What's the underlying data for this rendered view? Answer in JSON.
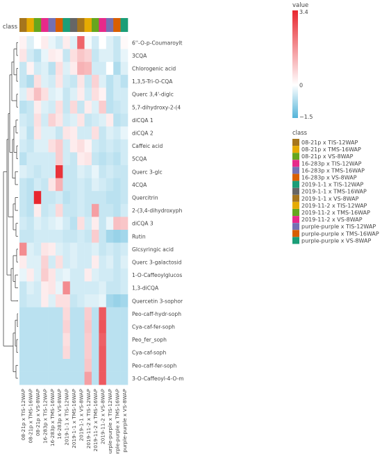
{
  "chart_data": {
    "type": "heatmap",
    "class_axis_label": "class",
    "rows": [
      "6''-O-p-Coumaroylt",
      "3CQA",
      "Chlorogenic acid",
      "1,3,5-Tri-O-CQA",
      "Querc 3,4'-diglc",
      "5,7-dihydroxy-2-(4",
      "diCQA 1",
      "diCQA 2",
      "Caffeic acid",
      "5CQA",
      "Querc 3-glc",
      "4CQA",
      "Quercitrin",
      "2-(3,4-dihydroxyph",
      "diCQA 3",
      "Rutin",
      "Glcsyringic acid",
      "Querc 3-galactosid",
      "1-O-Caffeoylglucos",
      "1,3-diCQA",
      "Quercetin 3-sophor",
      "Peo-caff-hydr-soph",
      "Cya-caf-fer-soph",
      "Peo_fer_soph",
      "Cya-caf-soph",
      "Peo-caff-fer-soph",
      "3-O-Caffeoyl-4-O-m"
    ],
    "columns": [
      "08-21p x TIS-12WAP",
      "08-21p x TMS-16WAP",
      "08-21p x VS-8WAP",
      "16-283p x TIS-12WAP",
      "16-283p x TMS-16WAP",
      "16-283p x VS-8WAP",
      "2019-1-1 x TIS-12WAP",
      "2019-1-1 x TMS-16WAP",
      "2019-1-1 x VS-8WAP",
      "2019-11-2 x TIS-12WAP",
      "2019-11-2 x TMS-16WAP",
      "2019-11-2 x VS-8WAP",
      "purple-purple x TIS-12WAP",
      "purple-purple x TMS-16WAP",
      "purple-purple x VS-8WAP"
    ],
    "column_class_colors": [
      "#a6761d",
      "#e6ab02",
      "#66a61e",
      "#e7298a",
      "#7570b3",
      "#d95f02",
      "#1b9e77",
      "#666666",
      "#a6761d",
      "#e6ab02",
      "#66a61e",
      "#e7298a",
      "#7570b3",
      "#d95f02",
      "#1b9e77"
    ],
    "values": [
      [
        0.2,
        -0.3,
        0.0,
        0.3,
        -0.2,
        -0.4,
        0.3,
        -0.3,
        2.4,
        -0.1,
        -0.4,
        0.0,
        -0.3,
        -0.5,
        0.1
      ],
      [
        0.4,
        -0.4,
        -0.6,
        -0.2,
        0.3,
        0.2,
        -0.5,
        0.5,
        0.9,
        0.7,
        -0.5,
        -0.3,
        -0.3,
        -0.5,
        -0.2
      ],
      [
        -0.5,
        0.2,
        -0.4,
        -0.3,
        -0.6,
        0.5,
        -0.3,
        0.3,
        1.2,
        1.1,
        -0.4,
        -0.4,
        0.0,
        -0.7,
        -0.3
      ],
      [
        -0.5,
        -0.7,
        0.5,
        -0.3,
        -0.4,
        0.4,
        -0.4,
        -0.5,
        0.4,
        -0.5,
        0.7,
        -0.3,
        -0.6,
        -0.4,
        -0.6
      ],
      [
        -0.3,
        0.4,
        1.0,
        0.5,
        -0.3,
        -0.2,
        -0.5,
        -0.3,
        0.3,
        -0.4,
        0.5,
        0.2,
        -0.6,
        -0.4,
        -0.4
      ],
      [
        -0.6,
        -0.5,
        0.3,
        -0.3,
        -0.4,
        0.5,
        -0.5,
        0.6,
        -0.5,
        0.3,
        -0.3,
        0.8,
        -0.6,
        -0.5,
        -0.4
      ],
      [
        -0.4,
        -0.5,
        0.5,
        -0.4,
        0.7,
        0.4,
        -0.4,
        -0.3,
        0.4,
        -0.5,
        -0.4,
        -0.3,
        0.3,
        -0.6,
        -0.5
      ],
      [
        -0.3,
        -0.6,
        0.4,
        -0.3,
        -0.3,
        -0.5,
        0.4,
        0.3,
        -0.4,
        -0.4,
        0.5,
        -0.5,
        -0.3,
        -0.4,
        -0.2
      ],
      [
        -0.4,
        -0.5,
        -0.3,
        -0.3,
        0.5,
        0.8,
        -0.4,
        0.3,
        0.5,
        0.2,
        -0.4,
        -0.5,
        -0.4,
        -0.5,
        -0.4
      ],
      [
        -0.6,
        -0.4,
        -0.4,
        -0.4,
        -0.4,
        0.8,
        -0.4,
        -0.5,
        0.3,
        0.4,
        -0.5,
        -0.6,
        -0.5,
        -0.6,
        -0.4
      ],
      [
        -0.3,
        -0.4,
        -0.5,
        -0.4,
        -0.4,
        3.2,
        -0.5,
        -0.5,
        -0.3,
        -0.4,
        -0.2,
        -0.5,
        -0.4,
        -0.5,
        -0.5
      ],
      [
        -0.5,
        -0.6,
        -0.4,
        -0.5,
        0.4,
        1.2,
        -0.5,
        -0.5,
        -0.4,
        -0.5,
        -0.3,
        -0.4,
        -0.5,
        -0.6,
        -0.5
      ],
      [
        -0.5,
        -0.6,
        3.4,
        -0.5,
        -0.5,
        -0.4,
        -0.6,
        -0.5,
        -0.4,
        -0.5,
        -0.5,
        -0.5,
        -0.6,
        -0.6,
        -0.5
      ],
      [
        -0.5,
        -0.6,
        0.3,
        -0.5,
        -0.4,
        0.6,
        -0.5,
        -0.5,
        -0.4,
        -0.5,
        1.5,
        -0.5,
        -0.5,
        -0.6,
        -0.4
      ],
      [
        -0.4,
        -0.5,
        -0.3,
        -0.4,
        -0.3,
        -0.2,
        -0.4,
        -0.6,
        0.5,
        -0.4,
        0.3,
        -0.5,
        -0.2,
        1.0,
        0.9
      ],
      [
        -0.5,
        -0.5,
        -0.4,
        -0.4,
        -0.4,
        -0.4,
        -0.5,
        -0.5,
        -0.4,
        -0.5,
        0.8,
        -0.5,
        -0.8,
        -0.9,
        -0.8
      ],
      [
        1.8,
        -0.3,
        -0.4,
        0.4,
        0.3,
        -0.3,
        -0.4,
        -0.3,
        -0.4,
        -0.4,
        -0.3,
        -0.5,
        -0.4,
        -0.5,
        -0.4
      ],
      [
        0.3,
        -0.3,
        -0.3,
        0.7,
        -0.4,
        0.5,
        -0.4,
        -0.3,
        -0.4,
        -0.4,
        0.3,
        -0.4,
        -0.3,
        -0.5,
        -0.3
      ],
      [
        -0.2,
        0.3,
        -0.3,
        0.8,
        0.4,
        -0.3,
        -0.2,
        -0.4,
        -0.4,
        0.3,
        -0.3,
        -0.4,
        -0.4,
        -0.5,
        -0.4
      ],
      [
        -0.5,
        -0.3,
        -0.4,
        0.3,
        0.4,
        -0.2,
        1.8,
        -0.4,
        -0.4,
        -0.4,
        -0.4,
        -0.3,
        -0.5,
        -0.5,
        -0.4
      ],
      [
        -0.5,
        -0.4,
        -0.4,
        0.3,
        -0.3,
        0.5,
        0.5,
        -0.5,
        -0.4,
        -0.3,
        -0.3,
        -0.2,
        -0.8,
        -0.9,
        -0.8
      ],
      [
        -0.6,
        -0.6,
        -0.6,
        -0.6,
        -0.6,
        -0.6,
        0.6,
        -0.6,
        -0.6,
        0.8,
        -0.6,
        2.6,
        -0.6,
        -0.6,
        -0.6
      ],
      [
        -0.6,
        -0.6,
        -0.6,
        -0.6,
        -0.6,
        -0.6,
        0.7,
        -0.6,
        -0.6,
        0.9,
        -0.6,
        2.7,
        -0.6,
        -0.6,
        -0.6
      ],
      [
        -0.6,
        -0.6,
        -0.6,
        -0.6,
        -0.6,
        -0.6,
        0.5,
        -0.6,
        -0.6,
        0.8,
        -0.6,
        2.5,
        -0.6,
        -0.6,
        -0.6
      ],
      [
        -0.6,
        -0.6,
        -0.6,
        -0.6,
        -0.6,
        -0.6,
        0.6,
        -0.6,
        -0.6,
        0.8,
        -0.6,
        2.6,
        -0.6,
        -0.6,
        -0.6
      ],
      [
        -0.6,
        -0.6,
        -0.6,
        -0.6,
        -0.6,
        -0.6,
        -0.6,
        -0.6,
        -0.6,
        0.9,
        -0.6,
        2.6,
        -0.6,
        -0.6,
        -0.6
      ],
      [
        -0.6,
        -0.6,
        -0.6,
        -0.6,
        -0.6,
        -0.6,
        -0.6,
        -0.6,
        -0.6,
        1.5,
        -0.6,
        2.6,
        -0.6,
        -0.6,
        -0.6
      ]
    ],
    "colorbar": {
      "title": "value",
      "min": -1.5,
      "mid": 0,
      "max": 3.4,
      "min_label": "−1.5",
      "mid_label": "0",
      "max_label": "3.4",
      "colors": {
        "low": "#53b4d9",
        "mid": "#ffffff",
        "high": "#e8262e"
      }
    },
    "legend": {
      "title": "class",
      "placement": "right",
      "items": [
        {
          "label": "08-21p x TIS-12WAP",
          "color": "#a6761d"
        },
        {
          "label": "08-21p x TMS-16WAP",
          "color": "#e6ab02"
        },
        {
          "label": "08-21p x VS-8WAP",
          "color": "#66a61e"
        },
        {
          "label": "16-283p x TIS-12WAP",
          "color": "#e7298a"
        },
        {
          "label": "16-283p x TMS-16WAP",
          "color": "#7570b3"
        },
        {
          "label": "16-283p x VS-8WAP",
          "color": "#d95f02"
        },
        {
          "label": "2019-1-1 x TIS-12WAP",
          "color": "#1b9e77"
        },
        {
          "label": "2019-1-1 x TMS-16WAP",
          "color": "#666666"
        },
        {
          "label": "2019-1-1 x VS-8WAP",
          "color": "#a6761d"
        },
        {
          "label": "2019-11-2 x TIS-12WAP",
          "color": "#e6ab02"
        },
        {
          "label": "2019-11-2 x TMS-16WAP",
          "color": "#66a61e"
        },
        {
          "label": "2019-11-2 x VS-8WAP",
          "color": "#e7298a"
        },
        {
          "label": "purple-purple x TIS-12WAP",
          "color": "#7570b3"
        },
        {
          "label": "purple-purple x TMS-16WAP",
          "color": "#d95f02"
        },
        {
          "label": "purple-purple x VS-8WAP",
          "color": "#1b9e77"
        }
      ]
    },
    "row_dendrogram": true
  }
}
